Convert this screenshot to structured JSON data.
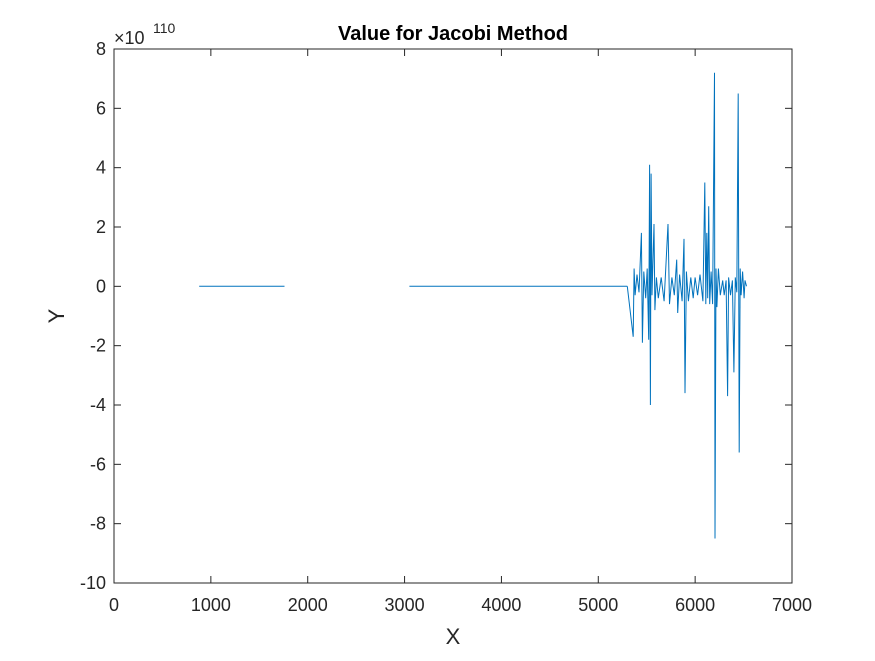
{
  "chart_data": {
    "type": "line",
    "title": "Value for Jacobi Method",
    "xlabel": "X",
    "ylabel": "Y",
    "xlim": [
      0,
      7000
    ],
    "ylim": [
      -10,
      8
    ],
    "xticks": [
      "0",
      "1000",
      "2000",
      "3000",
      "4000",
      "5000",
      "6000",
      "7000"
    ],
    "yticks": [
      "8",
      "6",
      "4",
      "2",
      "0",
      "-2",
      "-4",
      "-6",
      "-8",
      "-10"
    ],
    "y_exponent": {
      "multiplier": "×10",
      "power": "110"
    },
    "grid": false,
    "colors": {
      "series": "#0072BD",
      "axes": "#262626",
      "title": "#000000"
    },
    "series": [
      {
        "segments": [
          [
            [
              880,
              0
            ],
            [
              1760,
              0
            ]
          ],
          [
            [
              3050,
              0
            ],
            [
              5300,
              0
            ]
          ]
        ],
        "spikes": [
          [
            5360,
            -1.7
          ],
          [
            5370,
            0.6
          ],
          [
            5380,
            -0.3
          ],
          [
            5400,
            0.4
          ],
          [
            5420,
            -0.2
          ],
          [
            5445,
            1.8
          ],
          [
            5455,
            -1.9
          ],
          [
            5470,
            0.5
          ],
          [
            5490,
            -0.4
          ],
          [
            5505,
            0.6
          ],
          [
            5520,
            -1.8
          ],
          [
            5530,
            4.1
          ],
          [
            5538,
            -4.0
          ],
          [
            5545,
            3.8
          ],
          [
            5555,
            -0.3
          ],
          [
            5575,
            2.1
          ],
          [
            5585,
            -0.8
          ],
          [
            5600,
            0.3
          ],
          [
            5620,
            -0.4
          ],
          [
            5650,
            0.3
          ],
          [
            5680,
            -0.5
          ],
          [
            5720,
            2.1
          ],
          [
            5735,
            -0.6
          ],
          [
            5760,
            0.3
          ],
          [
            5785,
            -0.3
          ],
          [
            5810,
            0.9
          ],
          [
            5820,
            -0.9
          ],
          [
            5840,
            0.4
          ],
          [
            5865,
            -0.5
          ],
          [
            5885,
            1.6
          ],
          [
            5895,
            -3.6
          ],
          [
            5910,
            0.5
          ],
          [
            5930,
            -0.5
          ],
          [
            5955,
            0.3
          ],
          [
            5980,
            -0.4
          ],
          [
            6000,
            0.3
          ],
          [
            6025,
            -0.3
          ],
          [
            6050,
            0.4
          ],
          [
            6080,
            -0.5
          ],
          [
            6100,
            3.5
          ],
          [
            6110,
            -0.6
          ],
          [
            6120,
            1.8
          ],
          [
            6130,
            -0.4
          ],
          [
            6140,
            2.7
          ],
          [
            6150,
            -0.6
          ],
          [
            6165,
            0.5
          ],
          [
            6180,
            -0.6
          ],
          [
            6200,
            7.2
          ],
          [
            6205,
            -8.5
          ],
          [
            6215,
            0.6
          ],
          [
            6225,
            -0.7
          ],
          [
            6240,
            0.6
          ],
          [
            6260,
            -0.3
          ],
          [
            6285,
            0.2
          ],
          [
            6300,
            -0.3
          ],
          [
            6320,
            0.2
          ],
          [
            6335,
            -3.7
          ],
          [
            6345,
            0.3
          ],
          [
            6365,
            -0.3
          ],
          [
            6385,
            0.2
          ],
          [
            6400,
            -2.9
          ],
          [
            6415,
            0.3
          ],
          [
            6430,
            -0.2
          ],
          [
            6445,
            6.5
          ],
          [
            6455,
            -5.6
          ],
          [
            6465,
            0.6
          ],
          [
            6475,
            -0.3
          ],
          [
            6490,
            0.5
          ],
          [
            6505,
            -0.4
          ],
          [
            6515,
            0.2
          ],
          [
            6530,
            0
          ]
        ]
      }
    ]
  }
}
